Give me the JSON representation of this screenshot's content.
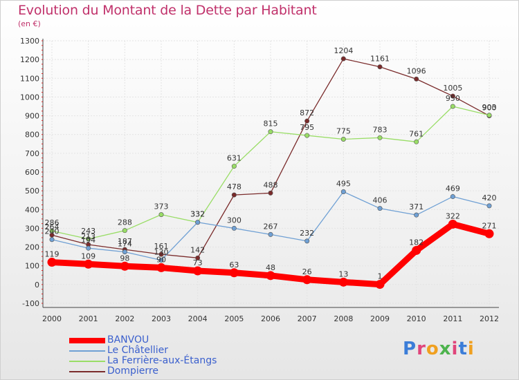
{
  "title": "Evolution du Montant de la Dette par Habitant",
  "subtitle": "(en €)",
  "logo": "Proxiti",
  "chart_data": {
    "type": "line",
    "x": [
      "2000",
      "2001",
      "2002",
      "2003",
      "2004",
      "2005",
      "2006",
      "2007",
      "2008",
      "2009",
      "2010",
      "2011",
      "2012"
    ],
    "ylim": [
      -100,
      1300
    ],
    "yticks": [
      -100,
      0,
      100,
      200,
      300,
      400,
      500,
      600,
      700,
      800,
      900,
      1000,
      1100,
      1200,
      1300
    ],
    "grid": true,
    "legend_position": "bottom-left",
    "series": [
      {
        "name": "BANVOU",
        "color": "#ff0000",
        "values": [
          119,
          109,
          98,
          90,
          73,
          63,
          48,
          26,
          13,
          1,
          182,
          322,
          271
        ],
        "labels": [
          "119",
          "109",
          "98",
          "90",
          "73",
          "63",
          "48",
          "26",
          "13",
          "1",
          "182",
          "322",
          "271"
        ]
      },
      {
        "name": "Le Châtellier",
        "color": "#6fa0d4",
        "values": [
          240,
          194,
          174,
          130,
          332,
          300,
          267,
          232,
          495,
          406,
          371,
          469,
          420
        ],
        "labels": [
          "240",
          "194",
          "174",
          "130",
          "332",
          "300",
          "267",
          "232",
          "495",
          "406",
          "371",
          "469",
          "420"
        ]
      },
      {
        "name": "La Ferrière-aux-Étangs",
        "color": "#99dd66",
        "values": [
          286,
          243,
          288,
          373,
          332,
          631,
          815,
          795,
          775,
          783,
          761,
          950,
          903
        ],
        "labels": [
          "286",
          "243",
          "288",
          "373",
          "332",
          "631",
          "815",
          "795",
          "775",
          "783",
          "761",
          "950",
          "903"
        ]
      },
      {
        "name": "Dompierre",
        "color": "#7a2b2b",
        "values": [
          264,
          213,
          187,
          161,
          142,
          478,
          488,
          872,
          1204,
          1161,
          1096,
          1005,
          900
        ],
        "labels": [
          "264",
          "213",
          "187",
          "161",
          "142",
          "478",
          "488",
          "872",
          "1204",
          "1161",
          "1096",
          "1005",
          "900"
        ]
      }
    ]
  }
}
